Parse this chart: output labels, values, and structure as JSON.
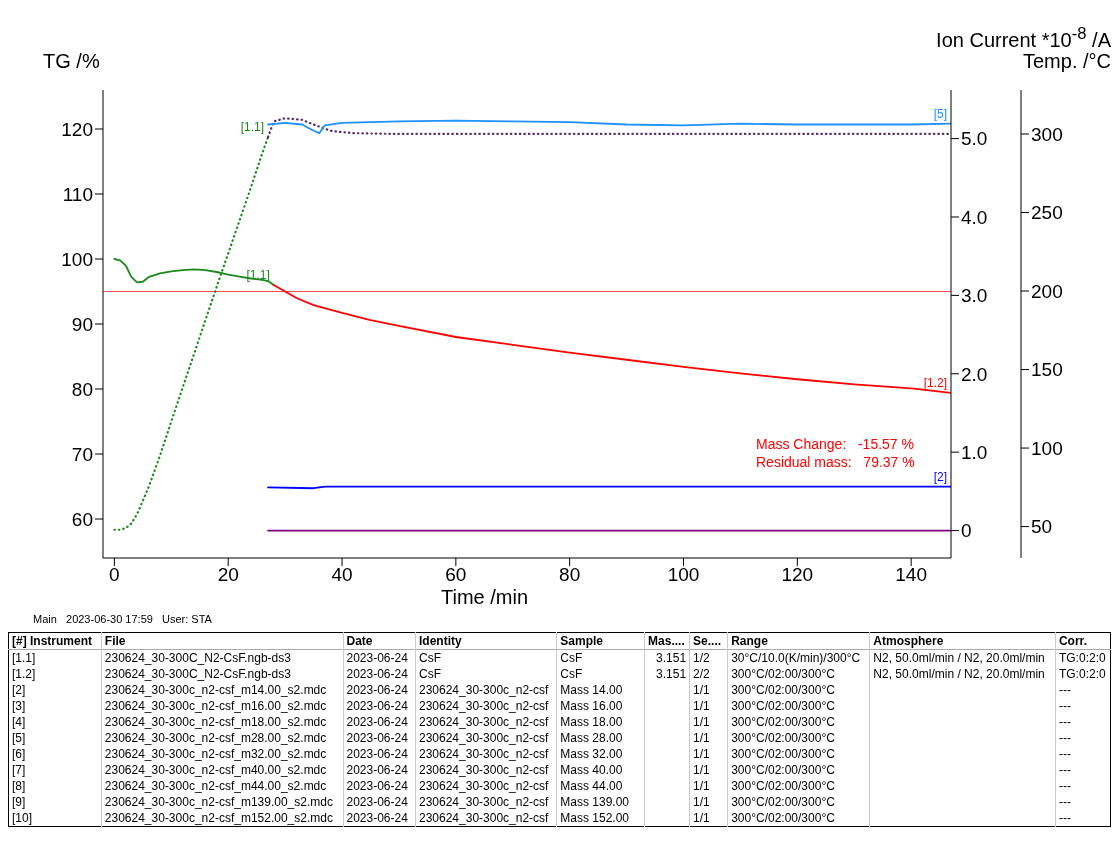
{
  "chart_data": {
    "type": "line",
    "xlabel": "Time /min",
    "ylabel": "TG /%",
    "y2label": "Ion Current *10$^{-8}$ /A",
    "y3label": "Temp. /°C",
    "xlim": [
      -2,
      147
    ],
    "xticks": [
      0,
      20,
      40,
      60,
      80,
      100,
      120,
      140
    ],
    "ylim": [
      54,
      126
    ],
    "yticks": [
      60,
      70,
      80,
      90,
      100,
      110,
      120
    ],
    "y2lim": [
      -0.35,
      5.62
    ],
    "y2ticks": [
      0,
      {
        "value": 1,
        "label": "1.0"
      },
      {
        "value": 2,
        "label": "2.0"
      },
      {
        "value": 3,
        "label": "3.0"
      },
      {
        "value": 4,
        "label": "4.0"
      },
      {
        "value": 5,
        "label": "5.0"
      }
    ],
    "y3lim": [
      30,
      328
    ],
    "y3ticks": [
      50,
      100,
      150,
      200,
      250,
      300
    ],
    "grid": false,
    "legend": false,
    "marker": "none",
    "ref_lines": [
      {
        "axis": "y",
        "value": 95,
        "color": "#ff5050"
      }
    ],
    "series": [
      {
        "name": "[1.1]",
        "color": "#1a8a1a",
        "x": [
          0,
          1,
          2,
          3,
          4,
          5,
          6,
          8,
          10,
          12,
          14,
          16,
          18,
          20,
          22,
          24,
          26,
          27,
          28
        ],
        "values": [
          100,
          99.8,
          99,
          97.2,
          96.4,
          96.5,
          97.2,
          97.8,
          98.1,
          98.3,
          98.4,
          98.3,
          98,
          97.6,
          97.3,
          97,
          96.8,
          96.6,
          96
        ]
      },
      {
        "name": "[1.2]",
        "color": "#ff0000",
        "x": [
          28,
          30,
          32,
          35,
          40,
          45,
          50,
          60,
          70,
          80,
          90,
          100,
          110,
          120,
          130,
          140,
          147
        ],
        "values": [
          96,
          95,
          94,
          92.9,
          91.7,
          90.6,
          89.7,
          88,
          86.8,
          85.6,
          84.5,
          83.4,
          82.4,
          81.5,
          80.7,
          80.1,
          79.4
        ]
      },
      {
        "name": "[1.1]",
        "color": "#1a8a1a",
        "axis": "y3",
        "line_style": "dotted",
        "x": [
          0,
          1,
          2,
          3,
          4,
          6,
          8,
          10,
          14,
          18,
          20,
          22,
          24,
          26,
          27
        ],
        "values": [
          48,
          48,
          49,
          52,
          58,
          75,
          95,
          117,
          160,
          203,
          224,
          245,
          266,
          288,
          298
        ]
      },
      {
        "color": "#5a2a6a",
        "axis": "y3",
        "line_style": "dotted",
        "x": [
          27,
          28,
          30,
          33,
          35,
          38,
          42,
          50,
          147
        ],
        "values": [
          298,
          308,
          310,
          309,
          306,
          302,
          300.5,
          300,
          300
        ]
      },
      {
        "name": "[5]",
        "color": "#1e90ff",
        "axis": "y2",
        "x": [
          27,
          30,
          33,
          35,
          36,
          37,
          40,
          50,
          60,
          70,
          80,
          90,
          100,
          110,
          120,
          130,
          140,
          147
        ],
        "values": [
          5.18,
          5.2,
          5.18,
          5.1,
          5.07,
          5.17,
          5.2,
          5.22,
          5.23,
          5.22,
          5.21,
          5.18,
          5.17,
          5.19,
          5.18,
          5.18,
          5.18,
          5.19
        ]
      },
      {
        "name": "[2]",
        "color": "#0000ff",
        "axis": "y2",
        "x": [
          27,
          35,
          37,
          147
        ],
        "values": [
          0.55,
          0.54,
          0.56,
          0.56
        ]
      },
      {
        "color": "#800080",
        "axis": "y2",
        "x": [
          27,
          147
        ],
        "values": [
          0,
          0
        ]
      }
    ],
    "annotations": [
      "Mass Change:   -15.57 %",
      "Residual mass:   79.37 %",
      "Main   2023-06-30 17:59   User: STA",
      "[#] Instrument",
      "File",
      "Date",
      "Identity",
      "Sample",
      "Mas....",
      "Se....",
      "Range",
      "Atmosphere",
      "Corr.",
      "[1.1]",
      "230624_30-300C_N2-CsF.ngb-ds3",
      "2023-06-24",
      "CsF",
      "CsF",
      "3.151",
      "1/2",
      "30°C/10.0(K/min)/300°C",
      "N2, 50.0ml/min / N2, 20.0ml/min",
      "TG:0:2:0",
      "[1.2]",
      "230624_30-300C_N2-CsF.ngb-ds3",
      "2023-06-24",
      "CsF",
      "CsF",
      "3.151",
      "2/2",
      "300°C/02:00/300°C",
      "N2, 50.0ml/min / N2, 20.0ml/min",
      "TG:0:2:0",
      "[2]",
      "230624_30-300c_n2-csf_m14.00_s2.mdc",
      "2023-06-24",
      "230624_30-300c_n2-csf",
      "Mass 14.00",
      null,
      "1/1",
      "300°C/02:00/300°C",
      null,
      "---",
      "[3]",
      "230624_30-300c_n2-csf_m16.00_s2.mdc",
      "2023-06-24",
      "230624_30-300c_n2-csf",
      "Mass 16.00",
      null,
      "1/1",
      "300°C/02:00/300°C",
      null,
      "---",
      "[4]",
      "230624_30-300c_n2-csf_m18.00_s2.mdc",
      "2023-06-24",
      "230624_30-300c_n2-csf",
      "Mass 18.00",
      null,
      "1/1",
      "300°C/02:00/300°C",
      null,
      "---",
      "[5]",
      "230624_30-300c_n2-csf_m28.00_s2.mdc",
      "2023-06-24",
      "230624_30-300c_n2-csf",
      "Mass 28.00",
      null,
      "1/1",
      "300°C/02:00/300°C",
      null,
      "---",
      "[6]",
      "230624_30-300c_n2-csf_m32.00_s2.mdc",
      "2023-06-24",
      "230624_30-300c_n2-csf",
      "Mass 32.00",
      null,
      "1/1",
      "300°C/02:00/300°C",
      null,
      "---",
      "[7]",
      "230624_30-300c_n2-csf_m40.00_s2.mdc",
      "2023-06-24",
      "230624_30-300c_n2-csf",
      "Mass 40.00",
      null,
      "1/1",
      "300°C/02:00/300°C",
      null,
      "---",
      "[8]",
      "230624_30-300c_n2-csf_m44.00_s2.mdc",
      "2023-06-24",
      "230624_30-300c_n2-csf",
      "Mass 44.00",
      null,
      "1/1",
      "300°C/02:00/300°C",
      null,
      "---",
      "[9]",
      "230624_30-300c_n2-csf_m139.00_s2.mdc",
      "2023-06-24",
      "230624_30-300c_n2-csf",
      "Mass 139.00",
      null,
      "1/1",
      "300°C/02:00/300°C",
      null,
      "---",
      "[10]",
      "230624_30-300c_n2-csf_m152.00_s2.mdc",
      "2023-06-24",
      "230624_30-300c_n2-csf",
      "Mass 152.00",
      null,
      "1/1",
      "300°C/02:00/300°C",
      null,
      "---"
    ]
  }
}
